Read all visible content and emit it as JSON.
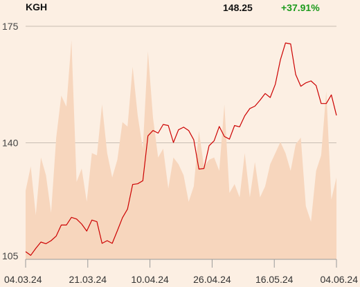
{
  "header": {
    "ticker": "KGH",
    "price": "148.25",
    "change": "+37.91%"
  },
  "colors": {
    "background": "#fcefe3",
    "price_line": "#cc0000",
    "volume_area": "#f7d6bd",
    "change_positive": "#1a9a1a"
  },
  "chart_data": {
    "type": "line",
    "yticks": [
      105,
      140,
      175
    ],
    "ylim": [
      105,
      175
    ],
    "xtick_labels": [
      "04.03.24",
      "21.03.24",
      "10.04.24",
      "26.04.24",
      "16.05.24",
      "04.06.24"
    ],
    "grid": "horizontal",
    "series": [
      {
        "values": [
          107.3,
          106.2,
          108.3,
          110.2,
          109.7,
          110.6,
          112.0,
          115.3,
          115.3,
          117.6,
          117.1,
          115.6,
          113.5,
          116.8,
          116.3,
          109.8,
          110.6,
          109.8,
          113.6,
          117.5,
          120.1,
          127.5,
          127.7,
          128.6,
          142.1,
          143.7,
          142.9,
          145.5,
          145.2,
          140.1,
          143.9,
          144.7,
          143.7,
          140.9,
          132.1,
          132.3,
          139.1,
          140.6,
          144.9,
          141.9,
          141.1,
          145.2,
          144.8,
          148.1,
          150.3,
          151.0,
          152.8,
          154.8,
          153.6,
          157.6,
          164.9,
          170.0,
          169.7,
          160.5,
          157.0,
          158.0,
          158.6,
          157.2,
          151.8,
          151.8,
          154.4,
          148.25
        ]
      },
      {
        "values": [
          0.31,
          0.42,
          0.2,
          0.46,
          0.38,
          0.21,
          0.55,
          0.74,
          0.69,
          0.99,
          0.35,
          0.41,
          0.26,
          0.48,
          0.47,
          0.7,
          0.48,
          0.37,
          0.45,
          0.62,
          0.6,
          0.87,
          0.65,
          0.5,
          0.94,
          0.64,
          0.46,
          0.5,
          0.32,
          0.46,
          0.43,
          0.38,
          0.26,
          0.33,
          0.58,
          0.42,
          0.45,
          0.46,
          0.4,
          0.7,
          0.3,
          0.34,
          0.28,
          0.48,
          0.28,
          0.44,
          0.28,
          0.33,
          0.43,
          0.48,
          0.53,
          0.48,
          0.4,
          0.52,
          0.55,
          0.24,
          0.17,
          0.4,
          0.47,
          0.76,
          0.27,
          0.37
        ]
      }
    ]
  }
}
